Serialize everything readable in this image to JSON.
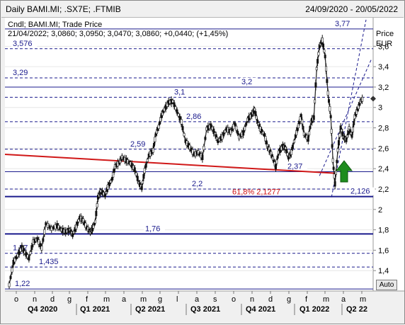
{
  "window": {
    "title": "Daily BAMI.MI; .SX7E; .FTMIB",
    "date_range": "24/09/2020 - 20/05/2022"
  },
  "legend": {
    "type": "Cndl; BAMI.MI; Trade Price",
    "ohlc": "21/04/2022; 3,0860; 3,0950; 3,0470; 3,0860; +0,0440; (+1,45%)"
  },
  "axis": {
    "currency_label": "Price",
    "currency": "EUR",
    "auto_button": "Auto"
  },
  "chart_data": {
    "type": "candlestick",
    "title": "Daily BAMI.MI; .SX7E; .FTMIB",
    "ylabel": "Price EUR",
    "ylim": [
      1.2,
      3.88
    ],
    "y_ticks": [
      "1,4",
      "1,6",
      "1,8",
      "2",
      "2,2",
      "2,4",
      "2,6",
      "2,8",
      "3",
      "3,2",
      "3,4",
      "3,6"
    ],
    "x_ticks": [
      "o",
      "n",
      "d",
      "g",
      "f",
      "m",
      "a",
      "m",
      "g",
      "l",
      "a",
      "s",
      "o",
      "n",
      "d",
      "g",
      "f",
      "m",
      "a",
      "m"
    ],
    "quarters": [
      "Q4 2020",
      "Q1 2021",
      "Q2 2021",
      "Q3 2021",
      "Q4 2021",
      "Q1 2022",
      "Q2 22"
    ],
    "levels": [
      {
        "label": "3,77",
        "value": 3.77,
        "style": "solid"
      },
      {
        "label": "3,576",
        "value": 3.576,
        "style": "dashed"
      },
      {
        "label": "3,29",
        "value": 3.29,
        "style": "dashed"
      },
      {
        "label": "3,2",
        "value": 3.2,
        "style": "solid"
      },
      {
        "label": "3,1",
        "value": 3.1,
        "style": "dashed"
      },
      {
        "label": "2,86",
        "value": 2.86,
        "style": "dashed"
      },
      {
        "label": "2,59",
        "value": 2.59,
        "style": "dashed"
      },
      {
        "label": "2,37",
        "value": 2.37,
        "style": "solid"
      },
      {
        "label": "2,2",
        "value": 2.2,
        "style": "dashed"
      },
      {
        "label": "2,126",
        "value": 2.126,
        "style": "solid"
      },
      {
        "label": "1,76",
        "value": 1.76,
        "style": "solid"
      },
      {
        "label": "1,57",
        "value": 1.57,
        "style": "dashed"
      },
      {
        "label": "1,435",
        "value": 1.435,
        "style": "dashed"
      },
      {
        "label": "1,22",
        "value": 1.22,
        "style": "solid"
      }
    ],
    "fib_label": "61,8% 2,1277",
    "last_price": 3.086,
    "series": [
      {
        "name": "BAMI.MI",
        "points": [
          [
            0,
            1.26
          ],
          [
            6,
            1.48
          ],
          [
            12,
            1.55
          ],
          [
            18,
            1.63
          ],
          [
            22,
            1.58
          ],
          [
            28,
            1.52
          ],
          [
            34,
            1.68
          ],
          [
            40,
            1.71
          ],
          [
            46,
            1.62
          ],
          [
            52,
            1.86
          ],
          [
            60,
            1.81
          ],
          [
            68,
            1.84
          ],
          [
            74,
            1.8
          ],
          [
            80,
            1.78
          ],
          [
            86,
            1.8
          ],
          [
            90,
            1.75
          ],
          [
            95,
            1.83
          ],
          [
            100,
            1.92
          ],
          [
            105,
            1.89
          ],
          [
            110,
            1.82
          ],
          [
            115,
            1.78
          ],
          [
            118,
            1.81
          ],
          [
            122,
            1.88
          ],
          [
            126,
            2.12
          ],
          [
            130,
            2.18
          ],
          [
            136,
            2.14
          ],
          [
            140,
            2.22
          ],
          [
            146,
            2.3
          ],
          [
            150,
            2.42
          ],
          [
            156,
            2.46
          ],
          [
            160,
            2.51
          ],
          [
            166,
            2.48
          ],
          [
            172,
            2.45
          ],
          [
            178,
            2.39
          ],
          [
            184,
            2.26
          ],
          [
            188,
            2.21
          ],
          [
            192,
            2.38
          ],
          [
            198,
            2.53
          ],
          [
            204,
            2.58
          ],
          [
            208,
            2.74
          ],
          [
            212,
            2.81
          ],
          [
            216,
            2.92
          ],
          [
            220,
            2.98
          ],
          [
            226,
            3.05
          ],
          [
            232,
            3.06
          ],
          [
            238,
            2.96
          ],
          [
            244,
            2.86
          ],
          [
            250,
            2.67
          ],
          [
            256,
            2.61
          ],
          [
            262,
            2.54
          ],
          [
            268,
            2.56
          ],
          [
            274,
            2.51
          ],
          [
            280,
            2.79
          ],
          [
            286,
            2.82
          ],
          [
            292,
            2.74
          ],
          [
            296,
            2.67
          ],
          [
            302,
            2.71
          ],
          [
            308,
            2.79
          ],
          [
            314,
            2.76
          ],
          [
            320,
            2.84
          ],
          [
            326,
            2.71
          ],
          [
            332,
            2.75
          ],
          [
            338,
            2.88
          ],
          [
            344,
            2.93
          ],
          [
            348,
            2.98
          ],
          [
            352,
            2.86
          ],
          [
            356,
            2.79
          ],
          [
            362,
            2.73
          ],
          [
            366,
            2.62
          ],
          [
            370,
            2.57
          ],
          [
            374,
            2.5
          ],
          [
            378,
            2.42
          ],
          [
            382,
            2.56
          ],
          [
            388,
            2.62
          ],
          [
            392,
            2.6
          ],
          [
            396,
            2.51
          ],
          [
            400,
            2.56
          ],
          [
            406,
            2.72
          ],
          [
            410,
            2.82
          ],
          [
            414,
            2.92
          ],
          [
            418,
            2.74
          ],
          [
            424,
            2.69
          ],
          [
            428,
            2.86
          ],
          [
            432,
            2.9
          ],
          [
            436,
            3.38
          ],
          [
            440,
            3.6
          ],
          [
            444,
            3.66
          ],
          [
            448,
            3.5
          ],
          [
            452,
            3.14
          ],
          [
            456,
            2.91
          ],
          [
            459,
            2.48
          ],
          [
            462,
            2.25
          ],
          [
            466,
            2.58
          ],
          [
            470,
            2.8
          ],
          [
            474,
            2.71
          ],
          [
            478,
            2.68
          ],
          [
            482,
            2.79
          ],
          [
            486,
            2.72
          ],
          [
            490,
            2.91
          ],
          [
            494,
            2.98
          ],
          [
            498,
            3.06
          ],
          [
            502,
            3.09
          ]
        ]
      }
    ]
  }
}
